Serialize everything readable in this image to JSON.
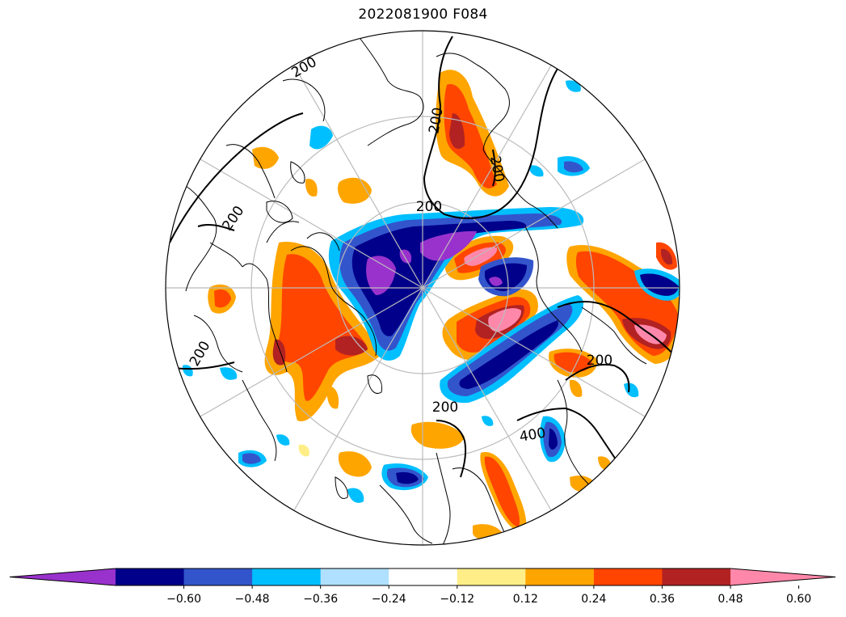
{
  "title": "2022081900 F084",
  "colorbar": {
    "colors": [
      "#9932CC",
      "#00008B",
      "#3355CC",
      "#00BFFF",
      "#B0E0FF",
      "#FFFFFF",
      "#FFEE88",
      "#FFA500",
      "#FF4500",
      "#B22222",
      "#FF88AA"
    ],
    "tick_labels": [
      "−0.60",
      "−0.48",
      "−0.36",
      "−0.24",
      "−0.12",
      "0.12",
      "0.24",
      "0.36",
      "0.48",
      "0.60"
    ]
  },
  "contour_labels": [
    "200",
    "200",
    "200",
    "200",
    "200",
    "200",
    "200",
    "200",
    "400"
  ]
}
